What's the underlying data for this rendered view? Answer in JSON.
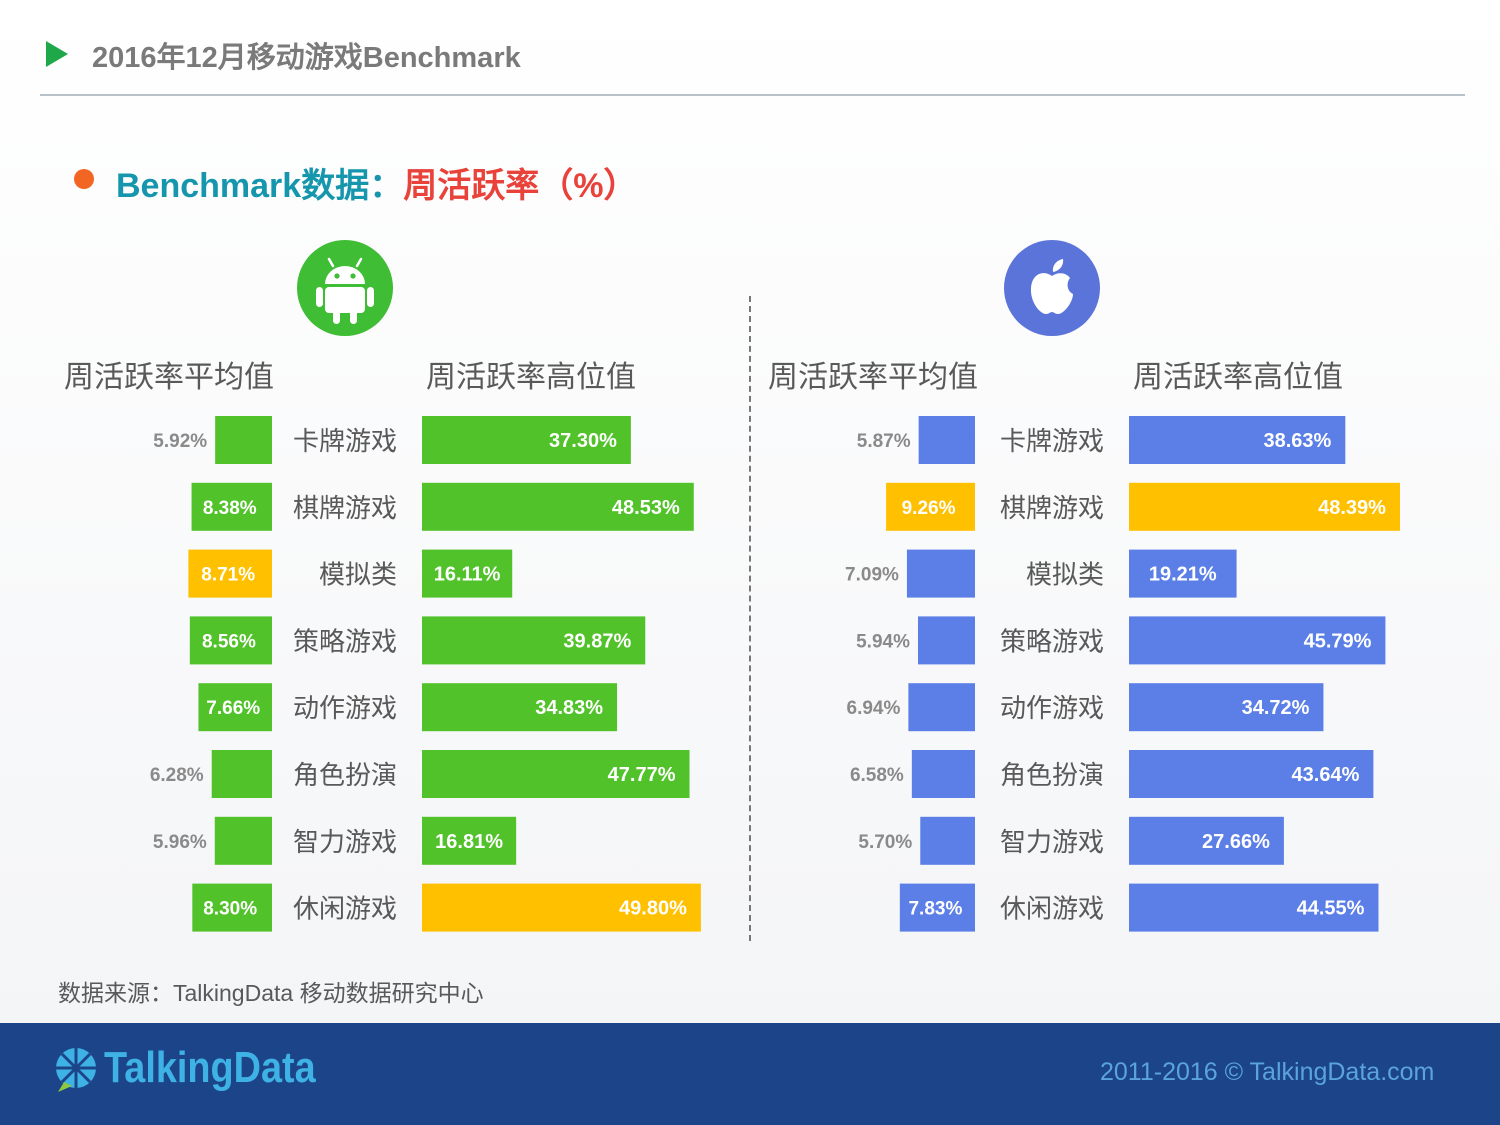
{
  "header": {
    "title": "2016年12月移动游戏Benchmark"
  },
  "subtitle": {
    "part1": "Benchmark数据：",
    "part2": "周活跃率（%）"
  },
  "colors": {
    "android_bar": "#52c22b",
    "ios_bar": "#5b7fe6",
    "highlight_bar": "#ffc000",
    "android_icon_bg": "#3ebd35",
    "ios_icon_bg": "#5b74d9"
  },
  "panels": {
    "android": {
      "icon": "android-icon",
      "avg_header": "周活跃率平均值",
      "high_header": "周活跃率高位值"
    },
    "ios": {
      "icon": "apple-icon",
      "avg_header": "周活跃率平均值",
      "high_header": "周活跃率高位值"
    }
  },
  "chart_data": [
    {
      "type": "bar",
      "platform": "Android",
      "categories": [
        "卡牌游戏",
        "棋牌游戏",
        "模拟类",
        "策略游戏",
        "动作游戏",
        "角色扮演",
        "智力游戏",
        "休闲游戏"
      ],
      "series": [
        {
          "name": "周活跃率平均值",
          "values": [
            5.92,
            8.38,
            8.71,
            8.56,
            7.66,
            6.28,
            5.96,
            8.3
          ],
          "labels": [
            "5.92%",
            "8.38%",
            "8.71%",
            "8.56%",
            "7.66%",
            "6.28%",
            "5.96%",
            "8.30%"
          ],
          "highlight_index": 2
        },
        {
          "name": "周活跃率高位值",
          "values": [
            37.3,
            48.53,
            16.11,
            39.87,
            34.83,
            47.77,
            16.81,
            49.8
          ],
          "labels": [
            "37.30%",
            "48.53%",
            "16.11%",
            "39.87%",
            "34.83%",
            "47.77%",
            "16.81%",
            "49.80%"
          ],
          "highlight_index": 7
        }
      ]
    },
    {
      "type": "bar",
      "platform": "iOS",
      "categories": [
        "卡牌游戏",
        "棋牌游戏",
        "模拟类",
        "策略游戏",
        "动作游戏",
        "角色扮演",
        "智力游戏",
        "休闲游戏"
      ],
      "series": [
        {
          "name": "周活跃率平均值",
          "values": [
            5.87,
            9.26,
            7.09,
            5.94,
            6.94,
            6.58,
            5.7,
            7.83
          ],
          "labels": [
            "5.87%",
            "9.26%",
            "7.09%",
            "5.94%",
            "6.94%",
            "6.58%",
            "5.70%",
            "7.83%"
          ],
          "highlight_index": 1
        },
        {
          "name": "周活跃率高位值",
          "values": [
            38.63,
            48.39,
            19.21,
            45.79,
            34.72,
            43.64,
            27.66,
            44.55
          ],
          "labels": [
            "38.63%",
            "48.39%",
            "19.21%",
            "45.79%",
            "34.72%",
            "43.64%",
            "27.66%",
            "44.55%"
          ],
          "highlight_index": 1
        }
      ]
    }
  ],
  "source": "数据来源：TalkingData 移动数据研究中心",
  "footer": {
    "brand": "TalkingData",
    "copyright": "2011-2016 © TalkingData.com"
  }
}
